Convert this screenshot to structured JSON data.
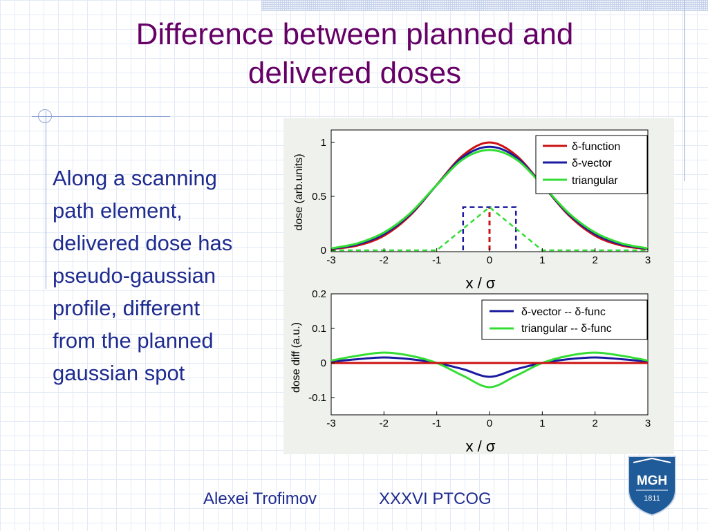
{
  "slide": {
    "title_line1": "Difference between planned and",
    "title_line2": "delivered doses",
    "bullet_lines": [
      "Along a scanning",
      "path element,",
      "delivered dose has",
      "pseudo-gaussian",
      "profile, different",
      "from the planned",
      "gaussian spot"
    ],
    "footer_author": "Alexei Trofimov",
    "footer_conference": "XXXVI PTCOG",
    "logo_text": "MGH",
    "logo_year": "1811"
  },
  "colors": {
    "title": "#660066",
    "body_text": "#1e2b8f",
    "red": "#cc1111",
    "blue": "#1a1aa0",
    "green": "#33dd33"
  },
  "chart_data": [
    {
      "type": "line",
      "ylabel": "dose (arb.units)",
      "xlabel": "x / σ",
      "xlim": [
        -3,
        3
      ],
      "ylim": [
        0,
        1.05
      ],
      "xticks": [
        "-3",
        "-2",
        "-1",
        "0",
        "1",
        "2",
        "3"
      ],
      "yticks": [
        "0",
        "0.5",
        "1"
      ],
      "legend_position": "top-right",
      "series": [
        {
          "name": "δ-function",
          "color": "#cc1111",
          "x": [
            -3,
            -2.5,
            -2,
            -1.5,
            -1,
            -0.5,
            0,
            0.5,
            1,
            1.5,
            2,
            2.5,
            3
          ],
          "values": [
            0.011,
            0.044,
            0.135,
            0.325,
            0.607,
            0.882,
            1.0,
            0.882,
            0.607,
            0.325,
            0.135,
            0.044,
            0.011
          ]
        },
        {
          "name": "δ-vector",
          "color": "#1a1aa0",
          "x": [
            -3,
            -2.5,
            -2,
            -1.5,
            -1,
            -0.5,
            0,
            0.5,
            1,
            1.5,
            2,
            2.5,
            3
          ],
          "values": [
            0.015,
            0.055,
            0.15,
            0.335,
            0.605,
            0.865,
            0.96,
            0.865,
            0.605,
            0.335,
            0.15,
            0.055,
            0.015
          ]
        },
        {
          "name": "triangular",
          "color": "#33dd33",
          "x": [
            -3,
            -2.5,
            -2,
            -1.5,
            -1,
            -0.5,
            0,
            0.5,
            1,
            1.5,
            2,
            2.5,
            3
          ],
          "values": [
            0.018,
            0.065,
            0.165,
            0.345,
            0.605,
            0.845,
            0.93,
            0.845,
            0.605,
            0.345,
            0.165,
            0.065,
            0.018
          ]
        }
      ],
      "profiles": [
        {
          "shape": "delta",
          "color": "#cc1111",
          "x": [
            0,
            0
          ],
          "values": [
            0,
            0.4
          ]
        },
        {
          "shape": "rectangle",
          "color": "#1a1aa0",
          "x": [
            -0.5,
            -0.5,
            0.5,
            0.5
          ],
          "values": [
            0,
            0.4,
            0.4,
            0
          ]
        },
        {
          "shape": "triangle",
          "color": "#33dd33",
          "x": [
            -3,
            -1,
            0,
            1,
            3
          ],
          "values": [
            0,
            0,
            0.4,
            0,
            0
          ]
        }
      ]
    },
    {
      "type": "line",
      "ylabel": "dose diff (a.u.)",
      "xlabel": "x / σ",
      "xlim": [
        -3,
        3
      ],
      "ylim": [
        -0.15,
        0.2
      ],
      "xticks": [
        "-3",
        "-2",
        "-1",
        "0",
        "1",
        "2",
        "3"
      ],
      "yticks": [
        "-0.1",
        "0",
        "0.1",
        "0.2"
      ],
      "legend_position": "top-right",
      "series": [
        {
          "name": "δ-vector -- δ-func",
          "color": "#1a1aa0",
          "x": [
            -3,
            -2.5,
            -2,
            -1.5,
            -1,
            -0.5,
            0,
            0.5,
            1,
            1.5,
            2,
            2.5,
            3
          ],
          "values": [
            0.004,
            0.011,
            0.016,
            0.011,
            0.0,
            -0.018,
            -0.04,
            -0.018,
            0.0,
            0.011,
            0.016,
            0.011,
            0.004
          ]
        },
        {
          "name": "triangular -- δ-func",
          "color": "#33dd33",
          "x": [
            -3,
            -2.5,
            -2,
            -1.5,
            -1,
            -0.5,
            0,
            0.5,
            1,
            1.5,
            2,
            2.5,
            3
          ],
          "values": [
            0.007,
            0.021,
            0.03,
            0.021,
            0.0,
            -0.037,
            -0.07,
            -0.037,
            0.0,
            0.021,
            0.03,
            0.021,
            0.007
          ]
        },
        {
          "name": "",
          "color": "#cc1111",
          "x": [
            -3,
            3
          ],
          "values": [
            0,
            0
          ]
        }
      ]
    }
  ]
}
